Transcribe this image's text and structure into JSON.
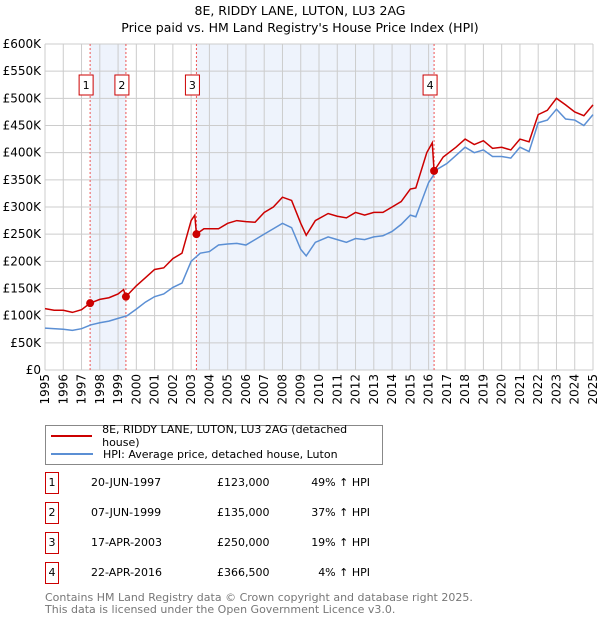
{
  "title": "8E, RIDDY LANE, LUTON, LU3 2AG",
  "subtitle": "Price paid vs. HM Land Registry's House Price Index (HPI)",
  "chart_data": {
    "type": "line",
    "title": "8E, RIDDY LANE, LUTON, LU3 2AG",
    "subtitle": "Price paid vs. HM Land Registry's House Price Index (HPI)",
    "xlim": [
      1995,
      2025
    ],
    "ylim": [
      0,
      600000
    ],
    "x_ticks": [
      "1995",
      "1996",
      "1997",
      "1998",
      "1999",
      "2000",
      "2001",
      "2002",
      "2003",
      "2004",
      "2005",
      "2006",
      "2007",
      "2008",
      "2009",
      "2010",
      "2011",
      "2012",
      "2013",
      "2014",
      "2015",
      "2016",
      "2017",
      "2018",
      "2019",
      "2020",
      "2021",
      "2022",
      "2023",
      "2024",
      "2025"
    ],
    "y_ticks": [
      {
        "v": 0,
        "l": "£0"
      },
      {
        "v": 50000,
        "l": "£50K"
      },
      {
        "v": 100000,
        "l": "£100K"
      },
      {
        "v": 150000,
        "l": "£150K"
      },
      {
        "v": 200000,
        "l": "£200K"
      },
      {
        "v": 250000,
        "l": "£250K"
      },
      {
        "v": 300000,
        "l": "£300K"
      },
      {
        "v": 350000,
        "l": "£350K"
      },
      {
        "v": 400000,
        "l": "£400K"
      },
      {
        "v": 450000,
        "l": "£450K"
      },
      {
        "v": 500000,
        "l": "£500K"
      },
      {
        "v": 550000,
        "l": "£550K"
      },
      {
        "v": 600000,
        "l": "£600K"
      }
    ],
    "grid": true,
    "series": [
      {
        "name": "8E, RIDDY LANE, LUTON, LU3 2AG (detached house)",
        "color": "#cc0000",
        "x": [
          1995,
          1995.5,
          1996,
          1996.5,
          1997,
          1997.47,
          1998,
          1998.5,
          1999,
          1999.3,
          1999.43,
          2000,
          2000.5,
          2001,
          2001.5,
          2002,
          2002.5,
          2003,
          2003.2,
          2003.29,
          2003.7,
          2004.5,
          2005,
          2005.5,
          2006,
          2006.5,
          2007,
          2007.5,
          2008,
          2008.5,
          2009,
          2009.3,
          2009.8,
          2010.5,
          2011,
          2011.5,
          2012,
          2012.5,
          2013,
          2013.5,
          2014,
          2014.5,
          2015,
          2015.3,
          2015.9,
          2016.2,
          2016.3,
          2016.8,
          2017.5,
          2018,
          2018.5,
          2019,
          2019.5,
          2020,
          2020.5,
          2021,
          2021.5,
          2022,
          2022.5,
          2023,
          2023.5,
          2024,
          2024.5,
          2025
        ],
        "y": [
          113000,
          110000,
          110000,
          106000,
          111000,
          123000,
          130000,
          133000,
          140000,
          148000,
          135000,
          155000,
          170000,
          185000,
          188000,
          205000,
          215000,
          275000,
          285000,
          250000,
          260000,
          260000,
          270000,
          275000,
          273000,
          272000,
          290000,
          300000,
          318000,
          312000,
          270000,
          248000,
          275000,
          288000,
          283000,
          280000,
          290000,
          285000,
          290000,
          290000,
          300000,
          310000,
          333000,
          335000,
          400000,
          418000,
          366500,
          392000,
          410000,
          425000,
          415000,
          422000,
          408000,
          410000,
          405000,
          425000,
          420000,
          470000,
          478000,
          500000,
          488000,
          475000,
          468000,
          488000
        ]
      },
      {
        "name": "HPI: Average price, detached house, Luton",
        "color": "#5b8fd4",
        "x": [
          1995,
          1996,
          1996.5,
          1997,
          1997.5,
          1998,
          1998.5,
          1999,
          1999.5,
          2000,
          2000.5,
          2001,
          2001.5,
          2002,
          2002.5,
          2003,
          2003.5,
          2004,
          2004.5,
          2005,
          2005.5,
          2006,
          2006.5,
          2007,
          2007.5,
          2008,
          2008.5,
          2009,
          2009.3,
          2009.8,
          2010.5,
          2011,
          2011.5,
          2012,
          2012.5,
          2013,
          2013.5,
          2014,
          2014.5,
          2015,
          2015.3,
          2016,
          2016.5,
          2017,
          2017.5,
          2018,
          2018.5,
          2019,
          2019.5,
          2020,
          2020.5,
          2021,
          2021.5,
          2022,
          2022.5,
          2023,
          2023.5,
          2024,
          2024.5,
          2025
        ],
        "y": [
          77000,
          75000,
          73000,
          76000,
          83000,
          87000,
          90000,
          95000,
          100000,
          112000,
          125000,
          135000,
          140000,
          152000,
          160000,
          200000,
          215000,
          218000,
          230000,
          232000,
          233000,
          230000,
          240000,
          250000,
          260000,
          270000,
          262000,
          222000,
          210000,
          235000,
          245000,
          240000,
          235000,
          242000,
          240000,
          245000,
          247000,
          255000,
          268000,
          285000,
          282000,
          345000,
          370000,
          380000,
          395000,
          410000,
          400000,
          405000,
          393000,
          393000,
          390000,
          410000,
          402000,
          455000,
          460000,
          480000,
          462000,
          460000,
          450000,
          470000
        ]
      }
    ],
    "sales": [
      {
        "n": "1",
        "x": 1997.47,
        "price": 123000
      },
      {
        "n": "2",
        "x": 1999.43,
        "price": 135000
      },
      {
        "n": "3",
        "x": 2003.29,
        "price": 250000
      },
      {
        "n": "4",
        "x": 2016.3,
        "price": 366500
      }
    ],
    "shaded_ranges": [
      [
        1997.47,
        1999.43
      ],
      [
        2003.29,
        2016.3
      ]
    ]
  },
  "legend": {
    "property": "8E, RIDDY LANE, LUTON, LU3 2AG (detached house)",
    "hpi": "HPI: Average price, detached house, Luton"
  },
  "sales_table": [
    {
      "n": "1",
      "date": "20-JUN-1997",
      "price": "£123,000",
      "hpi": "49% ↑ HPI"
    },
    {
      "n": "2",
      "date": "07-JUN-1999",
      "price": "£135,000",
      "hpi": "37% ↑ HPI"
    },
    {
      "n": "3",
      "date": "17-APR-2003",
      "price": "£250,000",
      "hpi": "19% ↑ HPI"
    },
    {
      "n": "4",
      "date": "22-APR-2016",
      "price": "£366,500",
      "hpi": "4% ↑ HPI"
    }
  ],
  "footer": {
    "line1": "Contains HM Land Registry data © Crown copyright and database right 2025.",
    "line2": "This data is licensed under the Open Government Licence v3.0."
  }
}
